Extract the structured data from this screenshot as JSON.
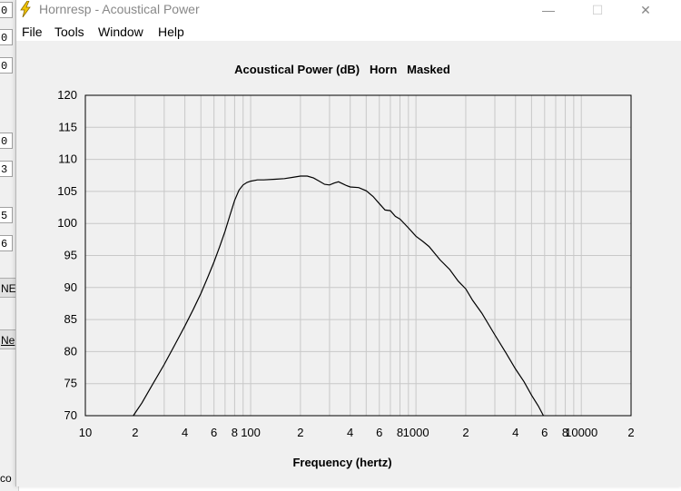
{
  "background_app": {
    "fields": [
      "0",
      "0",
      "0",
      "0",
      "3",
      "5",
      "6"
    ],
    "button_labels": [
      "NE",
      "Ne"
    ],
    "bottom_text": "co"
  },
  "window": {
    "title": "Hornresp - Acoustical Power",
    "controls": {
      "minimize": "—",
      "maximize": "☐",
      "close": "✕"
    }
  },
  "menu": {
    "items": [
      "File",
      "Tools",
      "Window",
      "Help"
    ]
  },
  "chart_data": {
    "type": "line",
    "title": "Acoustical Power (dB)   Horn   Masked",
    "xlabel": "Frequency (hertz)",
    "ylabel": "",
    "x_scale": "log",
    "xlim": [
      10,
      20000
    ],
    "ylim": [
      70,
      120
    ],
    "y_ticks": [
      120,
      115,
      110,
      105,
      100,
      95,
      90,
      85,
      80,
      75,
      70
    ],
    "x_tick_labels": [
      {
        "value": 10,
        "label": "10"
      },
      {
        "value": 20,
        "label": "2"
      },
      {
        "value": 40,
        "label": "4"
      },
      {
        "value": 60,
        "label": "6"
      },
      {
        "value": 80,
        "label": "8"
      },
      {
        "value": 100,
        "label": "100"
      },
      {
        "value": 200,
        "label": "2"
      },
      {
        "value": 400,
        "label": "4"
      },
      {
        "value": 600,
        "label": "6"
      },
      {
        "value": 800,
        "label": "8"
      },
      {
        "value": 1000,
        "label": "1000"
      },
      {
        "value": 2000,
        "label": "2"
      },
      {
        "value": 4000,
        "label": "4"
      },
      {
        "value": 6000,
        "label": "6"
      },
      {
        "value": 8000,
        "label": "8"
      },
      {
        "value": 10000,
        "label": "10000"
      },
      {
        "value": 20000,
        "label": "2"
      }
    ],
    "grid": true,
    "series": [
      {
        "x": [
          19.5,
          22,
          25,
          30,
          35,
          40,
          45,
          50,
          55,
          60,
          65,
          70,
          75,
          80,
          85,
          90,
          95,
          100,
          110,
          120,
          140,
          160,
          180,
          200,
          220,
          240,
          260,
          280,
          300,
          320,
          340,
          360,
          380,
          400,
          450,
          500,
          550,
          600,
          650,
          700,
          750,
          800,
          900,
          1000,
          1100,
          1200,
          1400,
          1600,
          1800,
          2000,
          2200,
          2500,
          3000,
          3500,
          4000,
          4500,
          5000,
          5500,
          5900
        ],
        "y": [
          70.0,
          72.0,
          74.5,
          78.0,
          81.2,
          84.0,
          86.6,
          89.1,
          91.6,
          94.0,
          96.4,
          98.8,
          101.3,
          103.6,
          105.2,
          106.0,
          106.4,
          106.6,
          106.8,
          106.8,
          106.9,
          107.0,
          107.2,
          107.4,
          107.4,
          107.1,
          106.6,
          106.1,
          106.0,
          106.3,
          106.5,
          106.2,
          105.9,
          105.7,
          105.6,
          105.1,
          104.2,
          103.1,
          102.1,
          102.0,
          101.1,
          100.7,
          99.3,
          98.0,
          97.2,
          96.4,
          94.3,
          92.8,
          91.0,
          89.8,
          88.0,
          86.0,
          82.6,
          79.8,
          77.3,
          75.3,
          73.2,
          71.5,
          70.0
        ]
      }
    ]
  }
}
